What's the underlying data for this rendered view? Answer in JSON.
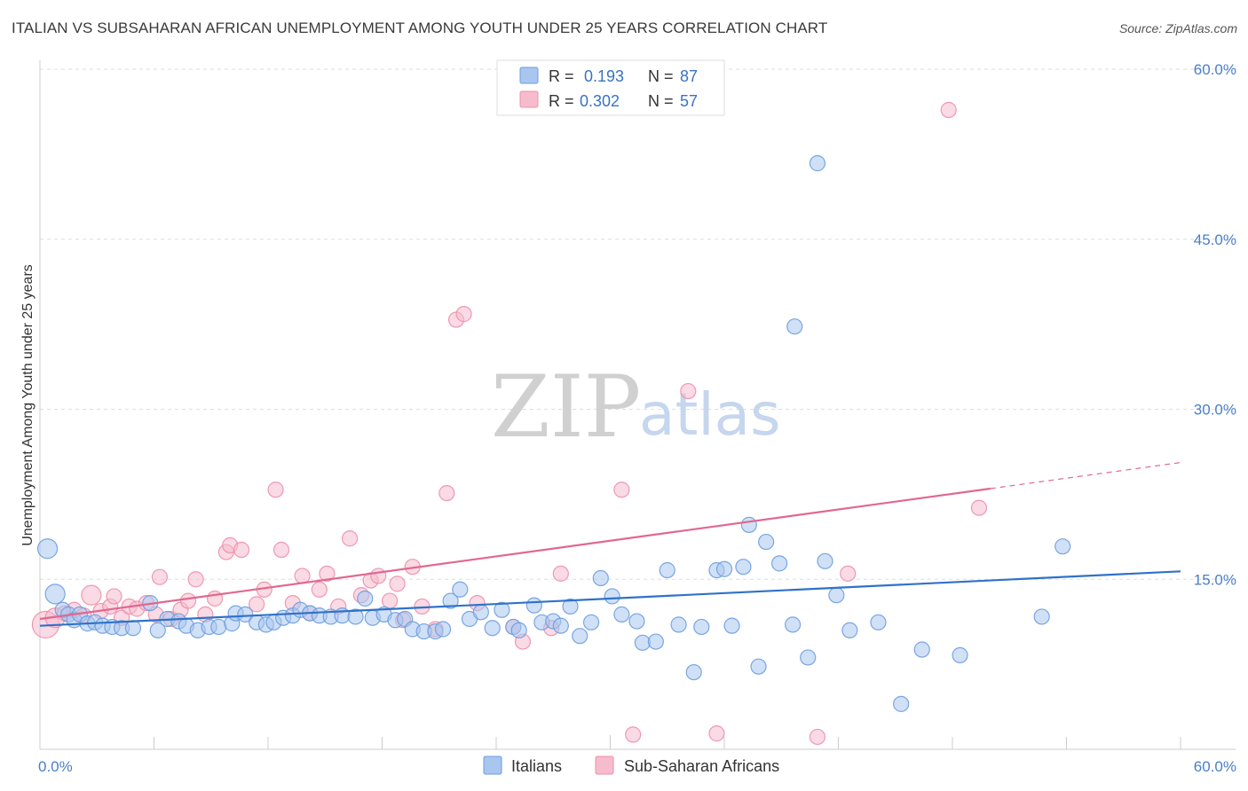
{
  "title": "ITALIAN VS SUBSAHARAN AFRICAN UNEMPLOYMENT AMONG YOUTH UNDER 25 YEARS CORRELATION CHART",
  "source": "Source: ZipAtlas.com",
  "watermark": {
    "zip": "ZIP",
    "atlas": "atlas"
  },
  "colors": {
    "italians_fill": "#a9c6ef",
    "italians_stroke": "#6b9de0",
    "italians_line": "#2f72c9",
    "ssa_fill": "#f6bccd",
    "ssa_stroke": "#ec8fab",
    "ssa_line": "#e0688f",
    "grid": "#dedede",
    "tick_text": "#4a7fc8"
  },
  "legend": {
    "rows": [
      {
        "r_label": "R =",
        "r_value": "0.193",
        "n_label": "N =",
        "n_value": "87"
      },
      {
        "r_label": "R =",
        "r_value": "0.302",
        "n_label": "N =",
        "n_value": "57"
      }
    ]
  },
  "bottom_legend": {
    "italians": "Italians",
    "ssa": "Sub-Saharan Africans"
  },
  "chart_data": {
    "type": "scatter",
    "title": "ITALIAN VS SUBSAHARAN AFRICAN UNEMPLOYMENT AMONG YOUTH UNDER 25 YEARS CORRELATION CHART",
    "xlabel": "",
    "ylabel": "Unemployment Among Youth under 25 years",
    "xlim": [
      0,
      60
    ],
    "ylim": [
      0,
      60
    ],
    "x_tick_labels": [
      "0.0%",
      "60.0%"
    ],
    "y_ticks": [
      15,
      30,
      45,
      60
    ],
    "y_tick_labels": [
      "15.0%",
      "30.0%",
      "45.0%",
      "60.0%"
    ],
    "grid": true,
    "legend_position": "top-center",
    "series": [
      {
        "name": "Italians",
        "trend": {
          "x": [
            0,
            60
          ],
          "y": [
            10.9,
            15.7
          ]
        },
        "points": [
          {
            "x": 0.4,
            "y": 17.7,
            "s": 2
          },
          {
            "x": 0.8,
            "y": 13.7,
            "s": 2
          },
          {
            "x": 1.2,
            "y": 12.3,
            "s": 1
          },
          {
            "x": 1.5,
            "y": 11.9,
            "s": 1
          },
          {
            "x": 1.8,
            "y": 11.4,
            "s": 1
          },
          {
            "x": 2.1,
            "y": 11.9,
            "s": 1
          },
          {
            "x": 2.5,
            "y": 11.1,
            "s": 1
          },
          {
            "x": 2.9,
            "y": 11.2,
            "s": 1
          },
          {
            "x": 3.3,
            "y": 10.9,
            "s": 1
          },
          {
            "x": 3.8,
            "y": 10.8,
            "s": 1
          },
          {
            "x": 4.3,
            "y": 10.7,
            "s": 1
          },
          {
            "x": 4.9,
            "y": 10.7,
            "s": 1
          },
          {
            "x": 5.8,
            "y": 12.9,
            "s": 1
          },
          {
            "x": 6.2,
            "y": 10.5,
            "s": 1
          },
          {
            "x": 6.7,
            "y": 11.5,
            "s": 1
          },
          {
            "x": 7.3,
            "y": 11.3,
            "s": 1
          },
          {
            "x": 7.7,
            "y": 10.9,
            "s": 1
          },
          {
            "x": 8.3,
            "y": 10.5,
            "s": 1
          },
          {
            "x": 8.9,
            "y": 10.8,
            "s": 1
          },
          {
            "x": 9.4,
            "y": 10.8,
            "s": 1
          },
          {
            "x": 10.1,
            "y": 11.1,
            "s": 1
          },
          {
            "x": 10.3,
            "y": 12.0,
            "s": 1
          },
          {
            "x": 10.8,
            "y": 11.9,
            "s": 1
          },
          {
            "x": 11.4,
            "y": 11.2,
            "s": 1
          },
          {
            "x": 11.9,
            "y": 11.0,
            "s": 1
          },
          {
            "x": 12.3,
            "y": 11.2,
            "s": 1
          },
          {
            "x": 12.8,
            "y": 11.6,
            "s": 1
          },
          {
            "x": 13.3,
            "y": 11.8,
            "s": 1
          },
          {
            "x": 13.7,
            "y": 12.3,
            "s": 1
          },
          {
            "x": 14.2,
            "y": 12.0,
            "s": 1
          },
          {
            "x": 14.7,
            "y": 11.8,
            "s": 1
          },
          {
            "x": 15.3,
            "y": 11.7,
            "s": 1
          },
          {
            "x": 15.9,
            "y": 11.8,
            "s": 1
          },
          {
            "x": 16.6,
            "y": 11.7,
            "s": 1
          },
          {
            "x": 17.1,
            "y": 13.3,
            "s": 1
          },
          {
            "x": 17.5,
            "y": 11.6,
            "s": 1
          },
          {
            "x": 18.1,
            "y": 11.9,
            "s": 1
          },
          {
            "x": 18.7,
            "y": 11.4,
            "s": 1
          },
          {
            "x": 19.2,
            "y": 11.5,
            "s": 1
          },
          {
            "x": 19.6,
            "y": 10.6,
            "s": 1
          },
          {
            "x": 20.2,
            "y": 10.4,
            "s": 1
          },
          {
            "x": 20.8,
            "y": 10.4,
            "s": 1
          },
          {
            "x": 21.2,
            "y": 10.6,
            "s": 1
          },
          {
            "x": 21.6,
            "y": 13.1,
            "s": 1
          },
          {
            "x": 22.1,
            "y": 14.1,
            "s": 1
          },
          {
            "x": 22.6,
            "y": 11.5,
            "s": 1
          },
          {
            "x": 23.2,
            "y": 12.1,
            "s": 1
          },
          {
            "x": 23.8,
            "y": 10.7,
            "s": 1
          },
          {
            "x": 24.3,
            "y": 12.3,
            "s": 1
          },
          {
            "x": 24.9,
            "y": 10.8,
            "s": 1
          },
          {
            "x": 25.2,
            "y": 10.5,
            "s": 1
          },
          {
            "x": 26.0,
            "y": 12.7,
            "s": 1
          },
          {
            "x": 26.4,
            "y": 11.2,
            "s": 1
          },
          {
            "x": 27.0,
            "y": 11.3,
            "s": 1
          },
          {
            "x": 27.4,
            "y": 10.9,
            "s": 1
          },
          {
            "x": 27.9,
            "y": 12.6,
            "s": 1
          },
          {
            "x": 28.4,
            "y": 10.0,
            "s": 1
          },
          {
            "x": 29.0,
            "y": 11.2,
            "s": 1
          },
          {
            "x": 29.5,
            "y": 15.1,
            "s": 1
          },
          {
            "x": 30.1,
            "y": 13.5,
            "s": 1
          },
          {
            "x": 30.6,
            "y": 11.9,
            "s": 1
          },
          {
            "x": 31.4,
            "y": 11.3,
            "s": 1
          },
          {
            "x": 31.7,
            "y": 9.4,
            "s": 1
          },
          {
            "x": 32.4,
            "y": 9.5,
            "s": 1
          },
          {
            "x": 33.0,
            "y": 15.8,
            "s": 1
          },
          {
            "x": 33.6,
            "y": 11.0,
            "s": 1
          },
          {
            "x": 34.4,
            "y": 6.8,
            "s": 1
          },
          {
            "x": 34.8,
            "y": 10.8,
            "s": 1
          },
          {
            "x": 35.6,
            "y": 15.8,
            "s": 1
          },
          {
            "x": 36.0,
            "y": 15.9,
            "s": 1
          },
          {
            "x": 36.4,
            "y": 10.9,
            "s": 1
          },
          {
            "x": 37.0,
            "y": 16.1,
            "s": 1
          },
          {
            "x": 37.3,
            "y": 19.8,
            "s": 1
          },
          {
            "x": 37.8,
            "y": 7.3,
            "s": 1
          },
          {
            "x": 38.2,
            "y": 18.3,
            "s": 1
          },
          {
            "x": 38.9,
            "y": 16.4,
            "s": 1
          },
          {
            "x": 39.6,
            "y": 11.0,
            "s": 1
          },
          {
            "x": 39.7,
            "y": 37.3,
            "s": 1
          },
          {
            "x": 40.4,
            "y": 8.1,
            "s": 1
          },
          {
            "x": 40.9,
            "y": 51.7,
            "s": 1
          },
          {
            "x": 41.3,
            "y": 16.6,
            "s": 1
          },
          {
            "x": 41.9,
            "y": 13.6,
            "s": 1
          },
          {
            "x": 42.6,
            "y": 10.5,
            "s": 1
          },
          {
            "x": 44.1,
            "y": 11.2,
            "s": 1
          },
          {
            "x": 45.3,
            "y": 4.0,
            "s": 1
          },
          {
            "x": 46.4,
            "y": 8.8,
            "s": 1
          },
          {
            "x": 48.4,
            "y": 8.3,
            "s": 1
          },
          {
            "x": 52.7,
            "y": 11.7,
            "s": 1
          },
          {
            "x": 53.8,
            "y": 17.9,
            "s": 1
          }
        ]
      },
      {
        "name": "Sub-Saharan Africans",
        "trend": {
          "x": [
            0,
            50
          ],
          "y": [
            11.5,
            23.0
          ]
        },
        "trend_extension": {
          "x": [
            50,
            60
          ],
          "y": [
            23.0,
            25.3
          ]
        },
        "points": [
          {
            "x": 0.3,
            "y": 11.0,
            "s": 3
          },
          {
            "x": 0.8,
            "y": 11.6,
            "s": 2
          },
          {
            "x": 1.3,
            "y": 12.0,
            "s": 1
          },
          {
            "x": 1.8,
            "y": 12.3,
            "s": 1
          },
          {
            "x": 2.3,
            "y": 11.8,
            "s": 1
          },
          {
            "x": 2.7,
            "y": 13.6,
            "s": 2
          },
          {
            "x": 3.2,
            "y": 12.2,
            "s": 1
          },
          {
            "x": 3.7,
            "y": 12.6,
            "s": 1
          },
          {
            "x": 3.9,
            "y": 13.5,
            "s": 1
          },
          {
            "x": 4.3,
            "y": 11.6,
            "s": 1
          },
          {
            "x": 4.7,
            "y": 12.6,
            "s": 1
          },
          {
            "x": 5.1,
            "y": 12.4,
            "s": 1
          },
          {
            "x": 5.6,
            "y": 12.9,
            "s": 1
          },
          {
            "x": 6.1,
            "y": 11.9,
            "s": 1
          },
          {
            "x": 6.3,
            "y": 15.2,
            "s": 1
          },
          {
            "x": 6.9,
            "y": 11.5,
            "s": 1
          },
          {
            "x": 7.4,
            "y": 12.3,
            "s": 1
          },
          {
            "x": 7.8,
            "y": 13.1,
            "s": 1
          },
          {
            "x": 8.2,
            "y": 15.0,
            "s": 1
          },
          {
            "x": 8.7,
            "y": 11.9,
            "s": 1
          },
          {
            "x": 9.2,
            "y": 13.3,
            "s": 1
          },
          {
            "x": 9.8,
            "y": 17.4,
            "s": 1
          },
          {
            "x": 10.0,
            "y": 18.0,
            "s": 1
          },
          {
            "x": 10.6,
            "y": 17.6,
            "s": 1
          },
          {
            "x": 11.4,
            "y": 12.8,
            "s": 1
          },
          {
            "x": 11.8,
            "y": 14.1,
            "s": 1
          },
          {
            "x": 12.4,
            "y": 22.9,
            "s": 1
          },
          {
            "x": 12.7,
            "y": 17.6,
            "s": 1
          },
          {
            "x": 13.3,
            "y": 12.9,
            "s": 1
          },
          {
            "x": 13.8,
            "y": 15.3,
            "s": 1
          },
          {
            "x": 14.2,
            "y": 12.0,
            "s": 1
          },
          {
            "x": 14.7,
            "y": 14.1,
            "s": 1
          },
          {
            "x": 15.1,
            "y": 15.5,
            "s": 1
          },
          {
            "x": 15.7,
            "y": 12.6,
            "s": 1
          },
          {
            "x": 16.3,
            "y": 18.6,
            "s": 1
          },
          {
            "x": 16.9,
            "y": 13.6,
            "s": 1
          },
          {
            "x": 17.4,
            "y": 14.9,
            "s": 1
          },
          {
            "x": 17.8,
            "y": 15.3,
            "s": 1
          },
          {
            "x": 18.4,
            "y": 13.1,
            "s": 1
          },
          {
            "x": 18.8,
            "y": 14.6,
            "s": 1
          },
          {
            "x": 19.1,
            "y": 11.4,
            "s": 1
          },
          {
            "x": 19.6,
            "y": 16.1,
            "s": 1
          },
          {
            "x": 20.1,
            "y": 12.6,
            "s": 1
          },
          {
            "x": 20.8,
            "y": 10.6,
            "s": 1
          },
          {
            "x": 21.4,
            "y": 22.6,
            "s": 1
          },
          {
            "x": 21.9,
            "y": 37.9,
            "s": 1
          },
          {
            "x": 22.3,
            "y": 38.4,
            "s": 1
          },
          {
            "x": 23.0,
            "y": 12.9,
            "s": 1
          },
          {
            "x": 24.9,
            "y": 10.8,
            "s": 1
          },
          {
            "x": 25.4,
            "y": 9.5,
            "s": 1
          },
          {
            "x": 26.9,
            "y": 10.7,
            "s": 1
          },
          {
            "x": 27.4,
            "y": 15.5,
            "s": 1
          },
          {
            "x": 30.6,
            "y": 22.9,
            "s": 1
          },
          {
            "x": 31.2,
            "y": 1.3,
            "s": 1
          },
          {
            "x": 34.1,
            "y": 31.6,
            "s": 1
          },
          {
            "x": 35.6,
            "y": 1.4,
            "s": 1
          },
          {
            "x": 40.9,
            "y": 1.1,
            "s": 1
          },
          {
            "x": 42.5,
            "y": 15.5,
            "s": 1
          },
          {
            "x": 47.8,
            "y": 56.4,
            "s": 1
          },
          {
            "x": 49.4,
            "y": 21.3,
            "s": 1
          }
        ]
      }
    ]
  }
}
